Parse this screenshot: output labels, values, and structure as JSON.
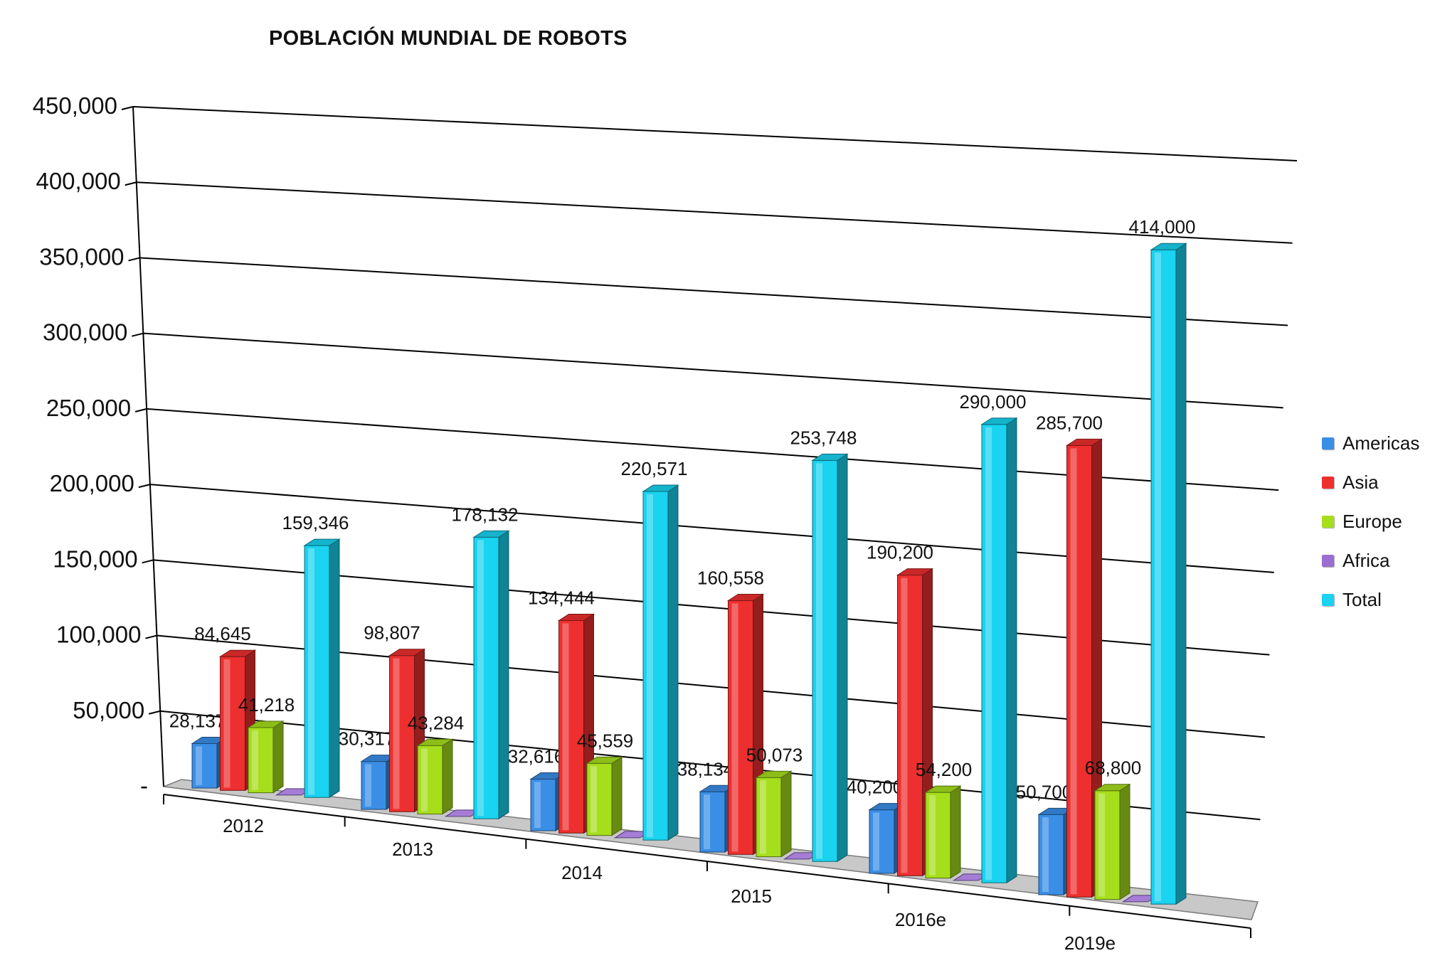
{
  "chart_data": {
    "type": "bar",
    "title": "POBLACIÓN MUNDIAL DE ROBOTS",
    "categories": [
      "2012",
      "2013",
      "2014",
      "2015",
      "2016e",
      "2019e"
    ],
    "y_tick_labels": [
      "-",
      "50,000",
      "100,000",
      "150,000",
      "200,000",
      "250,000",
      "300,000",
      "350,000",
      "400,000",
      "450,000"
    ],
    "ylim": [
      0,
      450000
    ],
    "grid": true,
    "legend_position": "right",
    "series": [
      {
        "name": "Americas",
        "color": "#3a8ee6",
        "values": [
          28137,
          30317,
          32616,
          38134,
          40200,
          50700
        ],
        "labels": [
          "28,137",
          "30,317",
          "32,616",
          "38,134",
          "40,200",
          "50,700"
        ]
      },
      {
        "name": "Asia",
        "color": "#ee2f2f",
        "values": [
          84645,
          98807,
          134444,
          160558,
          190200,
          285700
        ],
        "labels": [
          "84,645",
          "98,807",
          "134,444",
          "160,558",
          "190,200",
          "285,700"
        ]
      },
      {
        "name": "Europe",
        "color": "#a6de1c",
        "values": [
          41218,
          43284,
          45559,
          50073,
          54200,
          68800
        ],
        "labels": [
          "41,218",
          "43,284",
          "45,559",
          "50,073",
          "54,200",
          "68,800"
        ]
      },
      {
        "name": "Africa",
        "color": "#9b6ed1",
        "values": [
          0,
          0,
          0,
          0,
          0,
          0
        ],
        "labels": [
          "",
          "",
          "",
          "",
          "",
          ""
        ]
      },
      {
        "name": "Total",
        "color": "#19d3f0",
        "values": [
          159346,
          178132,
          220571,
          253748,
          290000,
          414000
        ],
        "labels": [
          "159,346",
          "178,132",
          "220,571",
          "253,748",
          "290,000",
          "414,000"
        ]
      }
    ]
  }
}
